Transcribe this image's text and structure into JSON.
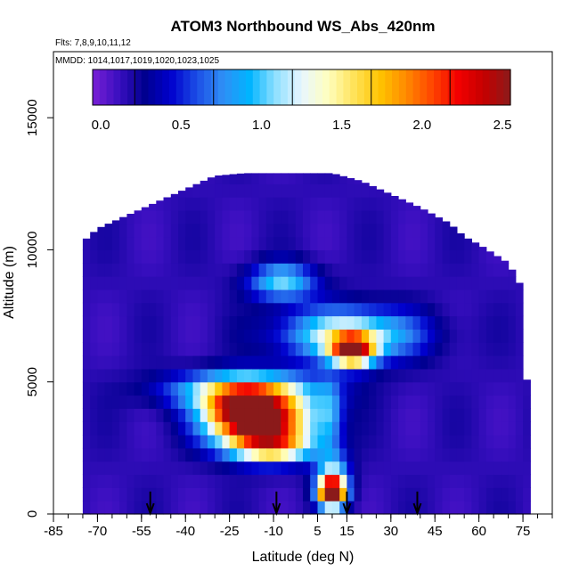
{
  "chart_data": {
    "type": "heatmap",
    "title": "ATOM3 Northbound WS_Abs_420nm",
    "flights_label": "Flts: 7,8,9,10,11,12",
    "dates_label": "MMDD: 1014,1017,1019,1020,1023,1025",
    "xlabel": "Latitude (deg N)",
    "ylabel": "Altitude (m)",
    "xlim": [
      -85,
      85
    ],
    "ylim": [
      0,
      17500
    ],
    "x_ticks": [
      -85,
      -70,
      -55,
      -40,
      -25,
      -10,
      5,
      15,
      30,
      45,
      60,
      75
    ],
    "x_minor_step": 5,
    "y_ticks": [
      0,
      5000,
      10000,
      15000
    ],
    "colorbar": {
      "range": [
        -0.05,
        2.55
      ],
      "ticks": [
        0.0,
        0.5,
        1.0,
        1.5,
        2.0,
        2.5
      ],
      "tick_labels": [
        "0.0",
        "0.5",
        "1.0",
        "1.5",
        "2.0",
        "2.5"
      ],
      "colors": [
        "#7a1fd6",
        "#3a0fc0",
        "#00008f",
        "#0000cd",
        "#1c4ee6",
        "#2f8ff5",
        "#00b4ff",
        "#8ee0ff",
        "#e8f6ff",
        "#ffffc0",
        "#ffe35a",
        "#ffc400",
        "#ff8a00",
        "#ff4500",
        "#f20000",
        "#c40000",
        "#8b1a1a"
      ]
    },
    "coverage_envelope": [
      [
        -75,
        0,
        10300
      ],
      [
        -70,
        0,
        10800
      ],
      [
        -60,
        0,
        11300
      ],
      [
        -50,
        0,
        11800
      ],
      [
        -40,
        0,
        12300
      ],
      [
        -30,
        0,
        12800
      ],
      [
        -20,
        0,
        12900
      ],
      [
        -10,
        0,
        12900
      ],
      [
        0,
        0,
        12900
      ],
      [
        10,
        0,
        12900
      ],
      [
        20,
        0,
        12600
      ],
      [
        30,
        0,
        12100
      ],
      [
        40,
        0,
        11600
      ],
      [
        50,
        0,
        11000
      ],
      [
        55,
        0,
        10500
      ],
      [
        60,
        0,
        10200
      ],
      [
        70,
        0,
        9500
      ],
      [
        75,
        0,
        8500
      ],
      [
        78,
        0,
        300
      ]
    ],
    "background_value": 0.15,
    "features": [
      {
        "lat": -14,
        "alt": 3500,
        "lat_sigma": 12,
        "alt_sigma": 750,
        "peak": 2.4
      },
      {
        "lat": -20,
        "alt": 4700,
        "lat_sigma": 18,
        "alt_sigma": 500,
        "peak": 1.1
      },
      {
        "lat": -22,
        "alt": 4000,
        "lat_sigma": 8,
        "alt_sigma": 600,
        "peak": 1.0
      },
      {
        "lat": -10,
        "alt": 2500,
        "lat_sigma": 10,
        "alt_sigma": 400,
        "peak": 1.0
      },
      {
        "lat": 17,
        "alt": 6200,
        "lat_sigma": 5,
        "alt_sigma": 400,
        "peak": 2.0
      },
      {
        "lat": 16,
        "alt": 6800,
        "lat_sigma": 16,
        "alt_sigma": 700,
        "peak": 1.2
      },
      {
        "lat": -7,
        "alt": 8800,
        "lat_sigma": 8,
        "alt_sigma": 500,
        "peak": 0.9
      },
      {
        "lat": 10,
        "alt": 800,
        "lat_sigma": 3,
        "alt_sigma": 350,
        "peak": 2.4
      },
      {
        "lat": 10,
        "alt": 1300,
        "lat_sigma": 4,
        "alt_sigma": 700,
        "peak": 1.1
      },
      {
        "lat": 9,
        "alt": 3800,
        "lat_sigma": 3,
        "alt_sigma": 900,
        "peak": 0.5
      }
    ],
    "arrows_lat": [
      -52,
      -9,
      15,
      39
    ],
    "grid": false,
    "legend": "top"
  }
}
